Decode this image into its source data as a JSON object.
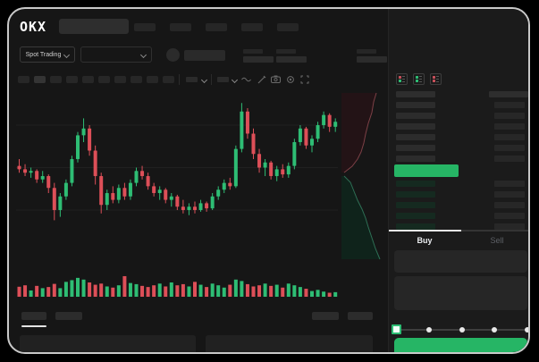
{
  "app": {
    "background": "#000000",
    "window_bg": "#161616",
    "up_green": "#2ebd74",
    "down_red": "#dd4f58",
    "button_green": "#26b565"
  },
  "header": {
    "logo_text": "OKX",
    "nav_placeholder_count": 5
  },
  "subheader": {
    "market_type_label": "Spot Trading",
    "stat_placeholder_count": 5
  },
  "chart_toolbar": {
    "timeframe_placeholder_count": 10,
    "tool_icons": [
      "indicator-dropdown",
      "overlay-dropdown",
      "line-style",
      "draw",
      "camera",
      "settings",
      "fullscreen"
    ]
  },
  "chart_data": {
    "type": "candlestick",
    "title": "",
    "xlabel": "",
    "ylabel": "",
    "ylim": [
      0,
      100
    ],
    "grid": true,
    "gridline_values": [
      30,
      55,
      80
    ],
    "up_color": "#2ebd74",
    "down_color": "#dd4f58",
    "candles_ohlc": [
      [
        56,
        60,
        52,
        54
      ],
      [
        54,
        57,
        50,
        52
      ],
      [
        52,
        55,
        49,
        53
      ],
      [
        53,
        54,
        46,
        48
      ],
      [
        48,
        53,
        46,
        50
      ],
      [
        50,
        51,
        40,
        43
      ],
      [
        43,
        46,
        24,
        30
      ],
      [
        30,
        40,
        26,
        38
      ],
      [
        38,
        48,
        36,
        46
      ],
      [
        46,
        62,
        44,
        60
      ],
      [
        60,
        76,
        58,
        74
      ],
      [
        74,
        84,
        70,
        78
      ],
      [
        78,
        80,
        62,
        65
      ],
      [
        65,
        68,
        45,
        50
      ],
      [
        50,
        52,
        28,
        33
      ],
      [
        33,
        42,
        30,
        40
      ],
      [
        40,
        44,
        34,
        36
      ],
      [
        36,
        45,
        34,
        43
      ],
      [
        43,
        46,
        36,
        38
      ],
      [
        38,
        48,
        36,
        46
      ],
      [
        46,
        55,
        44,
        53
      ],
      [
        53,
        56,
        48,
        50
      ],
      [
        50,
        52,
        42,
        44
      ],
      [
        44,
        46,
        38,
        40
      ],
      [
        40,
        44,
        36,
        42
      ],
      [
        42,
        43,
        34,
        36
      ],
      [
        36,
        40,
        32,
        38
      ],
      [
        38,
        39,
        30,
        32
      ],
      [
        32,
        36,
        28,
        30
      ],
      [
        30,
        34,
        27,
        32
      ],
      [
        32,
        35,
        28,
        30
      ],
      [
        30,
        36,
        29,
        34
      ],
      [
        34,
        35,
        29,
        31
      ],
      [
        31,
        40,
        30,
        38
      ],
      [
        38,
        44,
        36,
        42
      ],
      [
        42,
        48,
        40,
        46
      ],
      [
        46,
        49,
        42,
        44
      ],
      [
        44,
        68,
        43,
        66
      ],
      [
        66,
        93,
        64,
        88
      ],
      [
        88,
        90,
        72,
        75
      ],
      [
        75,
        78,
        60,
        63
      ],
      [
        63,
        66,
        52,
        55
      ],
      [
        55,
        60,
        50,
        58
      ],
      [
        58,
        59,
        48,
        50
      ],
      [
        50,
        56,
        47,
        54
      ],
      [
        54,
        57,
        49,
        51
      ],
      [
        51,
        58,
        49,
        56
      ],
      [
        56,
        72,
        54,
        70
      ],
      [
        70,
        80,
        68,
        78
      ],
      [
        78,
        79,
        66,
        68
      ],
      [
        68,
        74,
        64,
        72
      ],
      [
        72,
        82,
        70,
        80
      ],
      [
        80,
        88,
        78,
        86
      ],
      [
        86,
        87,
        76,
        79
      ],
      [
        79,
        84,
        76,
        82
      ]
    ],
    "volume": [
      35,
      40,
      22,
      38,
      30,
      34,
      45,
      30,
      52,
      58,
      66,
      60,
      50,
      42,
      46,
      36,
      32,
      40,
      72,
      48,
      44,
      38,
      34,
      40,
      46,
      36,
      50,
      40,
      44,
      36,
      52,
      42,
      34,
      46,
      40,
      32,
      42,
      60,
      55,
      44,
      36,
      40,
      46,
      38,
      42,
      32,
      46,
      40,
      34,
      28,
      20,
      24,
      18,
      14,
      16
    ]
  },
  "depth_map": {
    "ask_fill": "#231316",
    "ask_line": "#7c4046",
    "bid_fill": "#0f231b",
    "bid_line": "#2e6f55",
    "ask_points": [
      [
        39,
        6
      ],
      [
        36,
        16
      ],
      [
        34,
        28
      ],
      [
        30,
        40
      ],
      [
        27,
        52
      ],
      [
        25,
        62
      ],
      [
        22,
        72
      ],
      [
        18,
        80
      ],
      [
        12,
        88
      ],
      [
        3,
        95
      ]
    ],
    "bid_points": [
      [
        3,
        99
      ],
      [
        10,
        106
      ],
      [
        14,
        116
      ],
      [
        18,
        126
      ],
      [
        23,
        136
      ],
      [
        27,
        146
      ],
      [
        30,
        156
      ],
      [
        34,
        168
      ],
      [
        38,
        180
      ],
      [
        43,
        192
      ]
    ]
  },
  "orderbook": {
    "view_mode_icons": [
      "book-combined-icon",
      "book-bids-icon",
      "book-asks-icon"
    ],
    "ask_row_count": 6,
    "bid_row_count": 5,
    "last_price_color": "#26b565"
  },
  "trade_panel": {
    "tabs": [
      {
        "label": "Buy",
        "active": true
      },
      {
        "label": "Sell",
        "active": false
      }
    ],
    "amount_slider": {
      "stops": 5,
      "value_index": 0
    },
    "submit_label": ""
  },
  "bottom_area": {
    "tab_placeholder_count": 2,
    "right_placeholder_count": 2,
    "panel_placeholder_count": 2
  }
}
